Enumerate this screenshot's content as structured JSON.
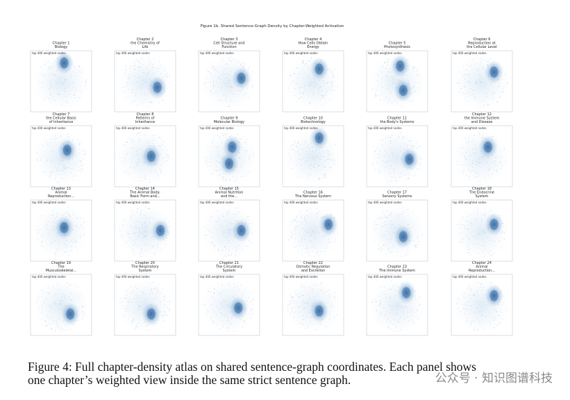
{
  "figure_title": "Figure 1b. Shared Sentence-Graph Density by Chapter-Weighted Activation",
  "panels": [
    {
      "title_lines": [
        "Chapter 1",
        "Biology"
      ],
      "subtitle": "top 400 weighted nodes"
    },
    {
      "title_lines": [
        "Chapter 2",
        "the Chemistry of",
        "Life"
      ],
      "subtitle": "top 400 weighted nodes"
    },
    {
      "title_lines": [
        "Chapter 3",
        "Cell Structure and",
        "Function"
      ],
      "subtitle": "top 400 weighted nodes"
    },
    {
      "title_lines": [
        "Chapter 4",
        "How Cells Obtain",
        "Energy"
      ],
      "subtitle": "top 400 weighted nodes"
    },
    {
      "title_lines": [
        "Chapter 5",
        "Photosynthesis"
      ],
      "subtitle": "top 400 weighted nodes"
    },
    {
      "title_lines": [
        "Chapter 6",
        "Reproduction at",
        "the Cellular Level"
      ],
      "subtitle": "top 400 weighted nodes"
    },
    {
      "title_lines": [
        "Chapter 7",
        "the Cellular Basis",
        "of Inheritance"
      ],
      "subtitle": "top 400 weighted nodes"
    },
    {
      "title_lines": [
        "Chapter 8",
        "Patterns of",
        "Inheritance"
      ],
      "subtitle": "top 400 weighted nodes"
    },
    {
      "title_lines": [
        "Chapter 9",
        "Molecular Biology"
      ],
      "subtitle": "top 400 weighted nodes"
    },
    {
      "title_lines": [
        "Chapter 10",
        "Biotechnology"
      ],
      "subtitle": "top 400 weighted nodes"
    },
    {
      "title_lines": [
        "Chapter 11",
        "the Body's Systems"
      ],
      "subtitle": "top 400 weighted nodes"
    },
    {
      "title_lines": [
        "Chapter 12",
        "the Immune System",
        "and Disease"
      ],
      "subtitle": "top 400 weighted nodes"
    },
    {
      "title_lines": [
        "Chapter 13",
        "Animal",
        "Reproduction..."
      ],
      "subtitle": "top 400 weighted nodes"
    },
    {
      "title_lines": [
        "Chapter 14",
        "The Animal Body:",
        "Basic Form and..."
      ],
      "subtitle": "top 400 weighted nodes"
    },
    {
      "title_lines": [
        "Chapter 15",
        "Animal Nutrition",
        "and the..."
      ],
      "subtitle": "top 400 weighted nodes"
    },
    {
      "title_lines": [
        "Chapter 16",
        "The Nervous System"
      ],
      "subtitle": "top 400 weighted nodes"
    },
    {
      "title_lines": [
        "Chapter 17",
        "Sensory Systems"
      ],
      "subtitle": "top 400 weighted nodes"
    },
    {
      "title_lines": [
        "Chapter 18",
        "The Endocrine",
        "System"
      ],
      "subtitle": "top 400 weighted nodes"
    },
    {
      "title_lines": [
        "Chapter 19",
        "The",
        "Musculoskeletal..."
      ],
      "subtitle": "top 400 weighted nodes"
    },
    {
      "title_lines": [
        "Chapter 20",
        "The Respiratory",
        "System"
      ],
      "subtitle": "top 400 weighted nodes"
    },
    {
      "title_lines": [
        "Chapter 21",
        "The Circulatory",
        "System"
      ],
      "subtitle": "top 400 weighted nodes"
    },
    {
      "title_lines": [
        "Chapter 22",
        "Osmotic Regulation",
        "and Excretion"
      ],
      "subtitle": "top 400 weighted nodes"
    },
    {
      "title_lines": [
        "Chapter 23",
        "The Immune System"
      ],
      "subtitle": "top 400 weighted nodes"
    },
    {
      "title_lines": [
        "Chapter 24",
        "Animal",
        "Reproduction..."
      ],
      "subtitle": "top 400 weighted nodes"
    }
  ],
  "caption": {
    "lines": [
      "Figure 4: Full chapter-density atlas on shared sentence-graph coordinates. Each panel shows",
      "one chapter’s weighted view inside the same strict sentence graph."
    ]
  },
  "watermark": "公众号 · 知识图谱科技"
}
